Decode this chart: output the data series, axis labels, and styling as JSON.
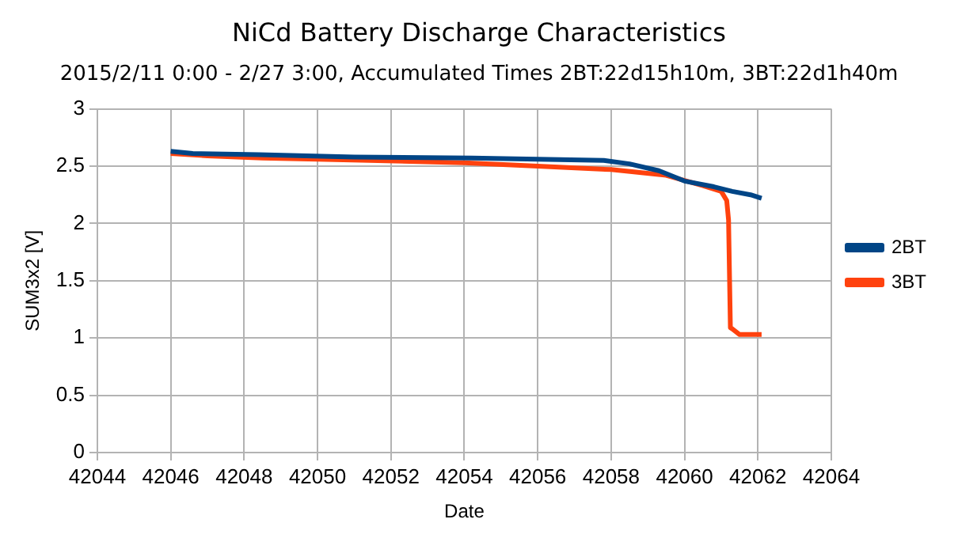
{
  "chart_data": {
    "type": "line",
    "title": "NiCd Battery Discharge Characteristics",
    "subtitle": "2015/2/11 0:00 - 2/27 3:00, Accumulated Times 2BT:22d15h10m, 3BT:22d1h40m",
    "xlabel": "Date",
    "ylabel": "SUM3x2 [V]",
    "series": [
      {
        "name": "2BT",
        "color": "#004586",
        "x": [
          42046,
          42046.6,
          42048.4,
          42051,
          42054.2,
          42056,
          42057.8,
          42058.5,
          42059.3,
          42060,
          42060.8,
          42061.3,
          42061.8,
          42062.1
        ],
        "values": [
          2.63,
          2.61,
          2.6,
          2.58,
          2.57,
          2.56,
          2.55,
          2.52,
          2.46,
          2.37,
          2.32,
          2.28,
          2.25,
          2.22
        ]
      },
      {
        "name": "3BT",
        "color": "#ff420e",
        "x": [
          42046,
          42047,
          42048.5,
          42050,
          42054,
          42056,
          42058,
          42059.5,
          42060.5,
          42061,
          42061.15,
          42061.2,
          42061.25,
          42061.3,
          42061.5,
          42062.1
        ],
        "values": [
          2.61,
          2.59,
          2.57,
          2.56,
          2.53,
          2.5,
          2.47,
          2.42,
          2.33,
          2.28,
          2.2,
          2.03,
          1.09,
          1.08,
          1.03,
          1.03
        ]
      }
    ],
    "xlim": [
      42044,
      42064
    ],
    "xticks": [
      42044,
      42046,
      42048,
      42050,
      42052,
      42054,
      42056,
      42058,
      42060,
      42062,
      42064
    ],
    "ylim": [
      0,
      3
    ],
    "yticks": [
      0,
      0.5,
      1,
      1.5,
      2,
      2.5,
      3
    ],
    "grid": true,
    "legend": "right",
    "marker": "none",
    "line_style": "solid"
  }
}
